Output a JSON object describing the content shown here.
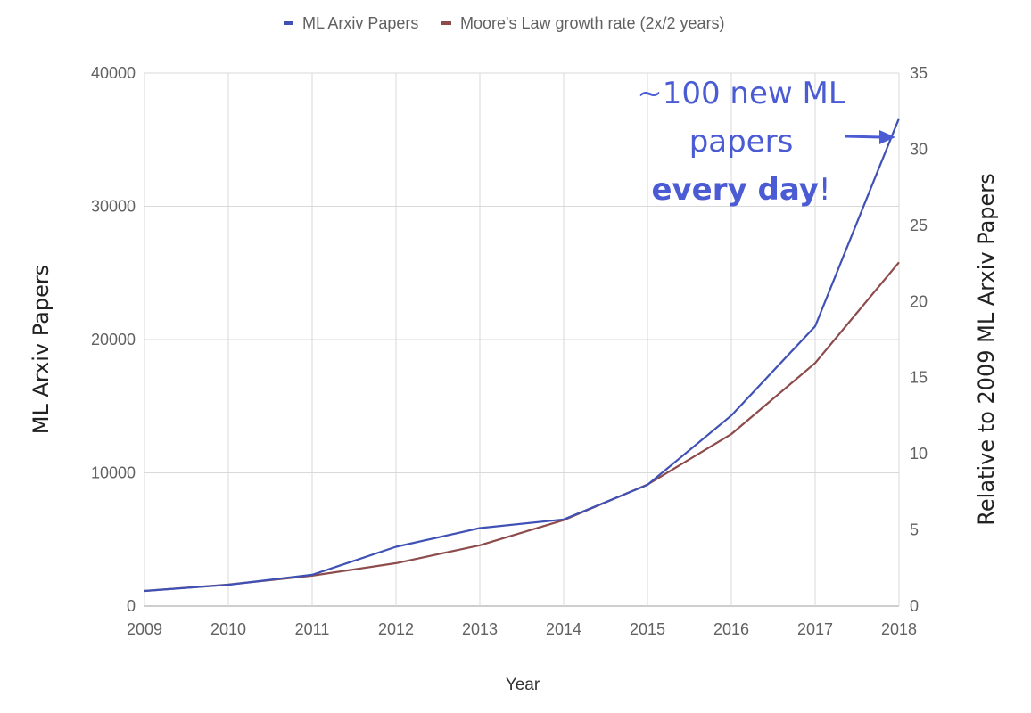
{
  "chart_data": {
    "type": "line",
    "title": "",
    "xlabel": "Year",
    "ylabel_left": "ML Arxiv Papers",
    "ylabel_right": "Relative to 2009 ML Arxiv Papers",
    "x": [
      2009,
      2010,
      2011,
      2012,
      2013,
      2014,
      2015,
      2016,
      2017,
      2018
    ],
    "xlim": [
      2009,
      2018
    ],
    "ylim_left": [
      0,
      40000
    ],
    "ylim_right": [
      0,
      35
    ],
    "yticks_left": [
      0,
      10000,
      20000,
      30000,
      40000
    ],
    "yticks_right": [
      0,
      5,
      10,
      15,
      20,
      25,
      30,
      35
    ],
    "grid": true,
    "legend_position": "top",
    "series": [
      {
        "name": "ML Arxiv Papers",
        "color": "#3f51b5",
        "axis": "left",
        "values": [
          1140,
          1600,
          2350,
          4450,
          5850,
          6500,
          9100,
          14300,
          21000,
          36600
        ]
      },
      {
        "name": "Moore's Law growth rate (2x/2 years)",
        "color": "#8d4b4b",
        "axis": "left",
        "values": [
          1140,
          1610,
          2280,
          3220,
          4560,
          6450,
          9120,
          12900,
          18240,
          25800
        ]
      }
    ],
    "annotation": {
      "line1": "~100 new ML",
      "line2": "papers",
      "line3_bold": "every day",
      "line3_suffix": "!",
      "color": "#4a5bd4",
      "points_to_series": "ML Arxiv Papers",
      "points_to_x": 2018
    }
  }
}
